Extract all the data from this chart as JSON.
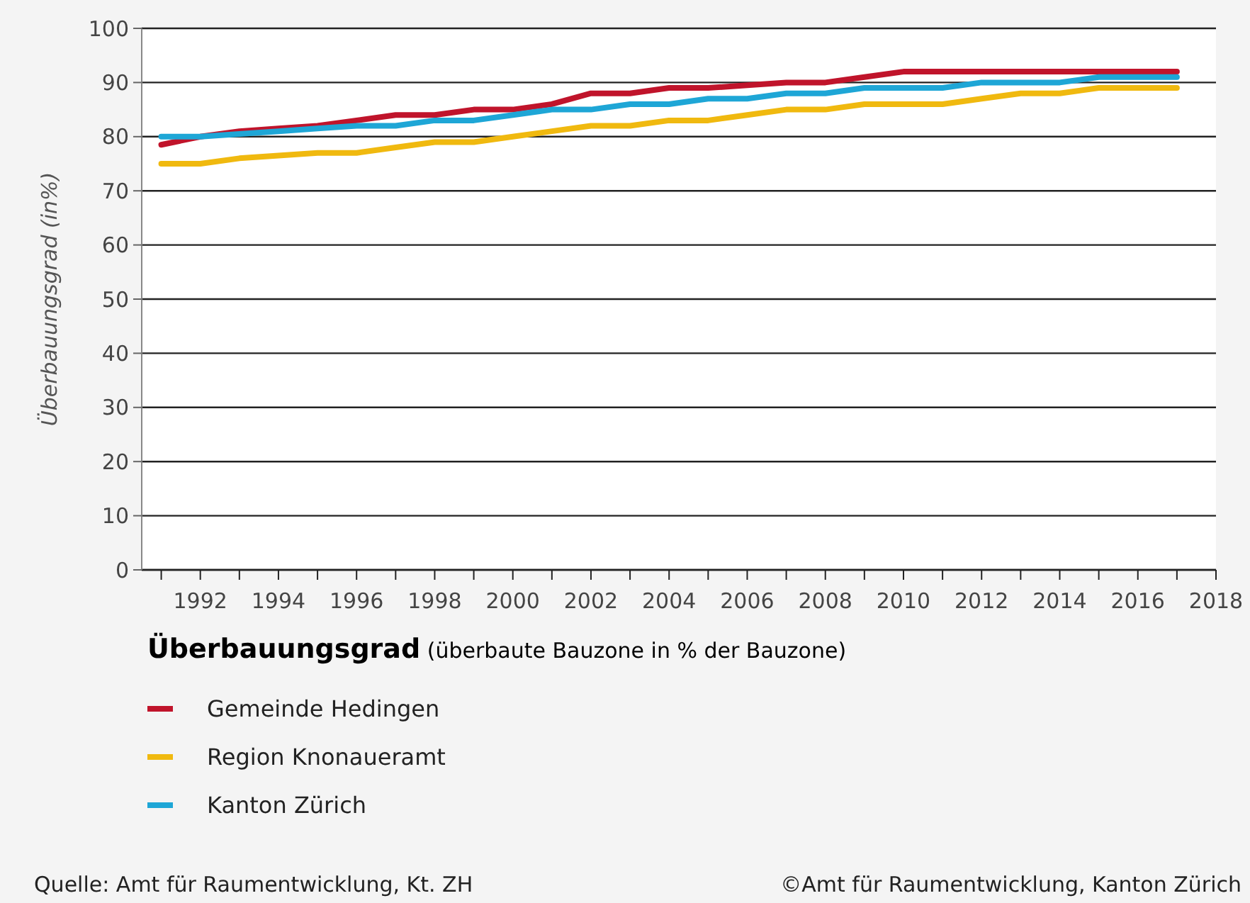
{
  "chart_data": {
    "type": "line",
    "ylabel": "Überbauungsgrad (in%)",
    "legend_title": "Überbauungsgrad (überbaute Bauzone in % der Bauzone)",
    "x": [
      1991,
      1992,
      1993,
      1994,
      1995,
      1996,
      1997,
      1998,
      1999,
      2000,
      2001,
      2002,
      2003,
      2004,
      2005,
      2006,
      2007,
      2008,
      2009,
      2010,
      2011,
      2012,
      2013,
      2014,
      2015,
      2016,
      2017
    ],
    "series": [
      {
        "name": "Gemeinde Hedingen",
        "color": "#c0142b",
        "values": [
          78.5,
          80,
          81,
          81.5,
          82,
          83,
          84,
          84,
          85,
          85,
          86,
          88,
          88,
          89,
          89,
          89.5,
          90,
          90,
          91,
          92,
          92,
          92,
          92,
          92,
          92,
          92,
          92
        ]
      },
      {
        "name": "Region Knonaueramt",
        "color": "#f0b90f",
        "values": [
          75,
          75,
          76,
          76.5,
          77,
          77,
          78,
          79,
          79,
          80,
          81,
          82,
          82,
          83,
          83,
          84,
          85,
          85,
          86,
          86,
          86,
          87,
          88,
          88,
          89,
          89,
          89
        ]
      },
      {
        "name": "Kanton Zürich",
        "color": "#1ea6d6",
        "values": [
          80,
          80,
          80.5,
          81,
          81.5,
          82,
          82,
          83,
          83,
          84,
          85,
          85,
          86,
          86,
          87,
          87,
          88,
          88,
          89,
          89,
          89,
          90,
          90,
          90,
          91,
          91,
          91
        ]
      }
    ],
    "xlim": [
      1990.5,
      2018
    ],
    "xticks": [
      {
        "value": 1991,
        "label": null
      },
      1992,
      {
        "value": 1993,
        "label": null
      },
      1994,
      {
        "value": 1995,
        "label": null
      },
      1996,
      {
        "value": 1997,
        "label": null
      },
      1998,
      {
        "value": 1999,
        "label": null
      },
      2000,
      {
        "value": 2001,
        "label": null
      },
      2002,
      {
        "value": 2003,
        "label": null
      },
      2004,
      {
        "value": 2005,
        "label": null
      },
      2006,
      {
        "value": 2007,
        "label": null
      },
      2008,
      {
        "value": 2009,
        "label": null
      },
      2010,
      {
        "value": 2011,
        "label": null
      },
      2012,
      {
        "value": 2013,
        "label": null
      },
      2014,
      {
        "value": 2015,
        "label": null
      },
      2016,
      {
        "value": 2017,
        "label": null
      },
      2018
    ],
    "ylim": [
      0,
      100
    ],
    "yticks": [
      0,
      10,
      20,
      30,
      40,
      50,
      60,
      70,
      80,
      90,
      100
    ],
    "grid": "y",
    "legend": "bottom",
    "line_style": "solid",
    "annotations": [
      "Quelle: Amt für Raumentwicklung, Kt. ZH",
      "©Amt für Raumentwicklung, Kanton Zürich"
    ]
  }
}
